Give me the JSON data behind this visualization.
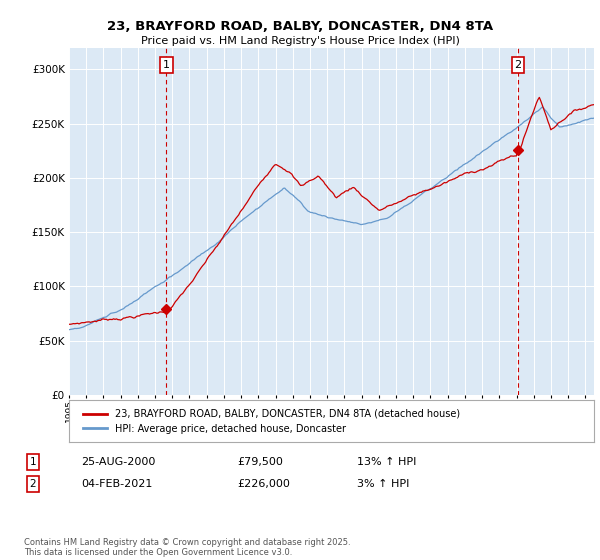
{
  "title_line1": "23, BRAYFORD ROAD, BALBY, DONCASTER, DN4 8TA",
  "title_line2": "Price paid vs. HM Land Registry's House Price Index (HPI)",
  "ylim": [
    0,
    320000
  ],
  "yticks": [
    0,
    50000,
    100000,
    150000,
    200000,
    250000,
    300000
  ],
  "ytick_labels": [
    "£0",
    "£50K",
    "£100K",
    "£150K",
    "£200K",
    "£250K",
    "£300K"
  ],
  "background_color": "#dce9f5",
  "line1_color": "#cc0000",
  "line2_color": "#6699cc",
  "sale1_date": "25-AUG-2000",
  "sale1_price": 79500,
  "sale1_label": "1",
  "sale1_note": "13% ↑ HPI",
  "sale2_date": "04-FEB-2021",
  "sale2_price": 226000,
  "sale2_label": "2",
  "sale2_note": "3% ↑ HPI",
  "legend_line1": "23, BRAYFORD ROAD, BALBY, DONCASTER, DN4 8TA (detached house)",
  "legend_line2": "HPI: Average price, detached house, Doncaster",
  "footnote": "Contains HM Land Registry data © Crown copyright and database right 2025.\nThis data is licensed under the Open Government Licence v3.0.",
  "sale1_x": 2000.65,
  "sale2_x": 2021.09,
  "xmin": 1995,
  "xmax": 2025.5
}
